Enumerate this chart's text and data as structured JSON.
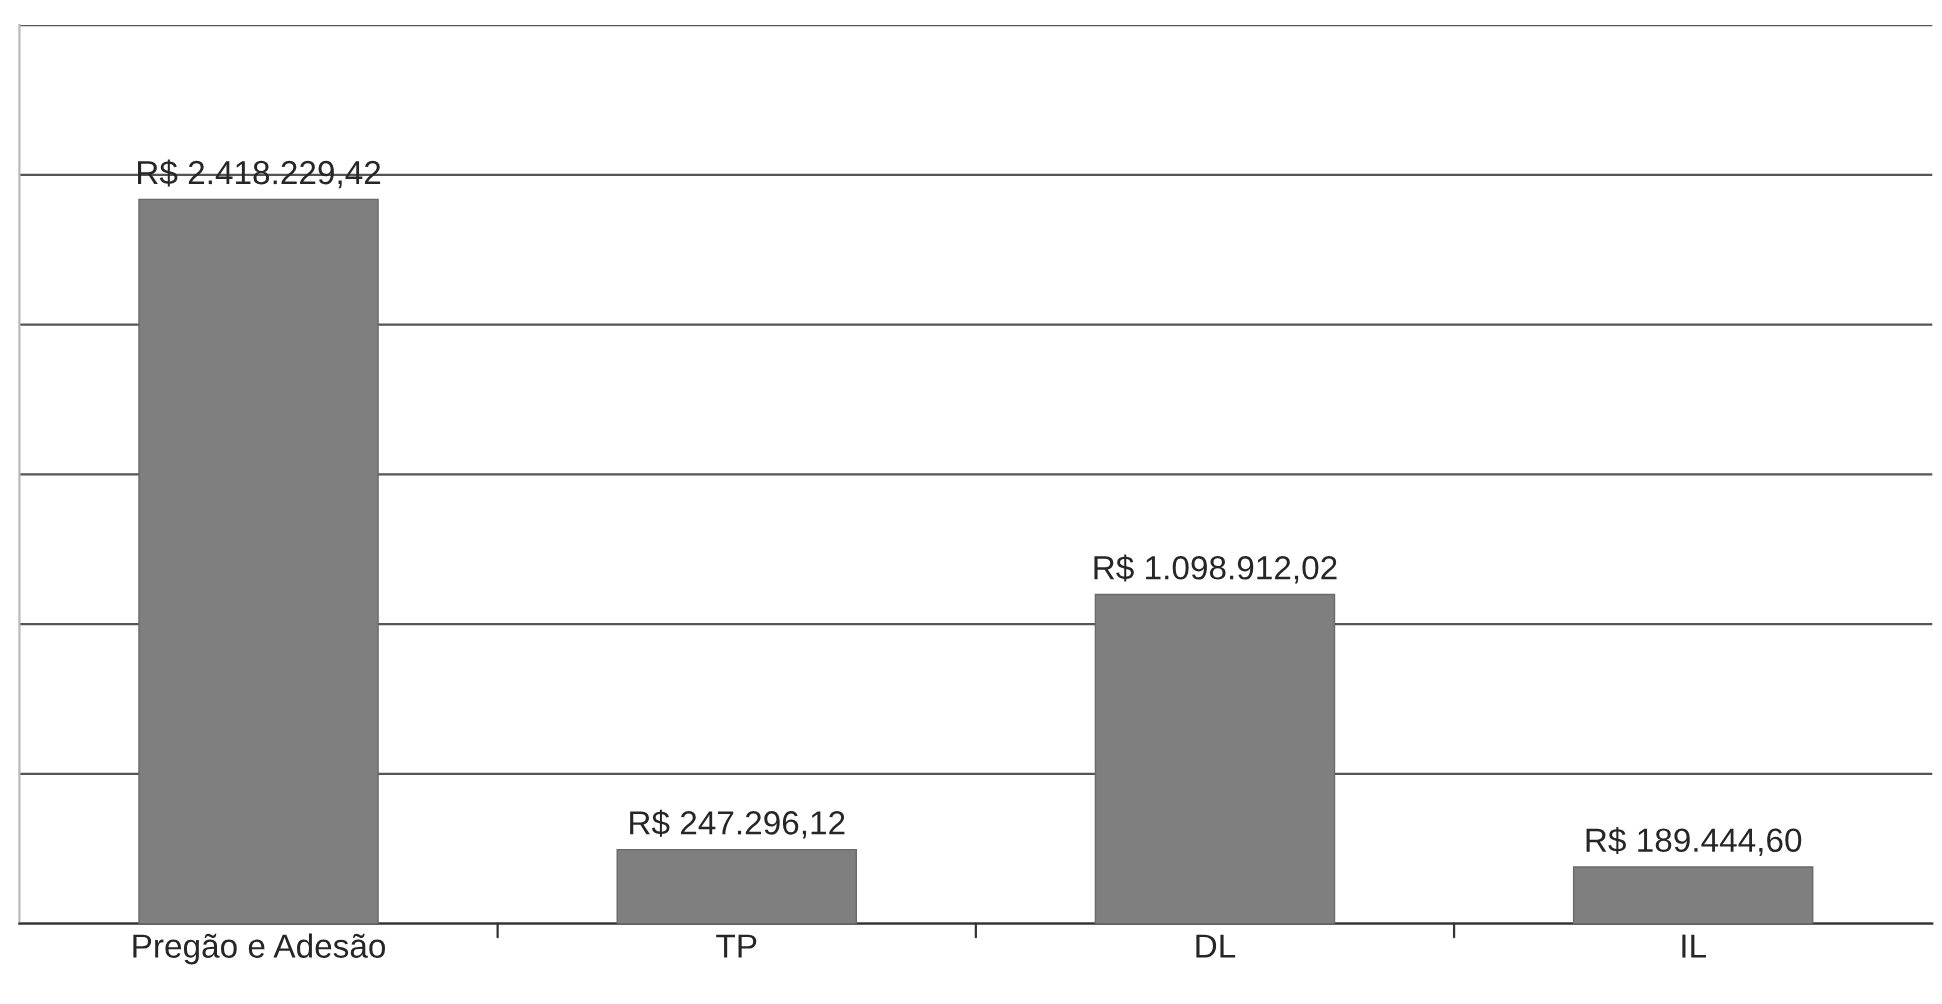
{
  "chart_data": {
    "type": "bar",
    "categories": [
      "Pregão e Adesão",
      "TP",
      "DL",
      "IL"
    ],
    "values": [
      2418229.42,
      247296.12,
      1098912.02,
      189444.6
    ],
    "value_labels": [
      "R$ 2.418.229,42",
      "R$ 247.296,12",
      "R$ 1.098.912,02",
      "R$ 189.444,60"
    ],
    "color": "#7f7f7f",
    "ylim": [
      0,
      3000000
    ],
    "yticks": [
      {
        "value": 0,
        "label": null
      },
      {
        "value": 500000,
        "label": null
      },
      {
        "value": 1000000,
        "label": null
      },
      {
        "value": 1500000,
        "label": null
      },
      {
        "value": 2000000,
        "label": null
      },
      {
        "value": 2500000,
        "label": null
      },
      {
        "value": 3000000,
        "label": null
      }
    ],
    "tick_labels": "x",
    "grid": "y",
    "legend": false
  }
}
